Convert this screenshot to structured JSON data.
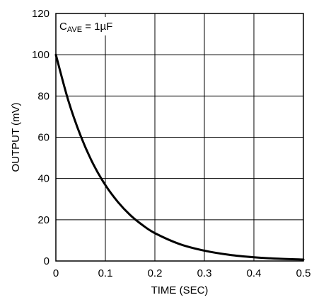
{
  "chart_data": {
    "type": "line",
    "title": "",
    "xlabel": "TIME (SEC)",
    "ylabel": "OUTPUT (mV)",
    "xlim": [
      0,
      0.5
    ],
    "ylim": [
      0,
      120
    ],
    "x_ticks": [
      "0",
      "0.1",
      "0.2",
      "0.3",
      "0.4",
      "0.5"
    ],
    "y_ticks": [
      "0",
      "20",
      "40",
      "60",
      "80",
      "100",
      "120"
    ],
    "grid": true,
    "legend": "none",
    "annotation": {
      "main": "C",
      "subscript": "AVE",
      "rest": " = 1µF",
      "position": "top-left"
    },
    "series": [
      {
        "color": "#000000",
        "x": [
          0,
          0.025,
          0.05,
          0.075,
          0.1,
          0.125,
          0.15,
          0.175,
          0.2,
          0.25,
          0.3,
          0.35,
          0.4,
          0.45,
          0.5
        ],
        "y": [
          100,
          77.9,
          60.7,
          47.2,
          36.8,
          28.7,
          22.3,
          17.4,
          13.5,
          8.2,
          5.0,
          3.0,
          1.8,
          1.1,
          0.7
        ]
      }
    ]
  }
}
